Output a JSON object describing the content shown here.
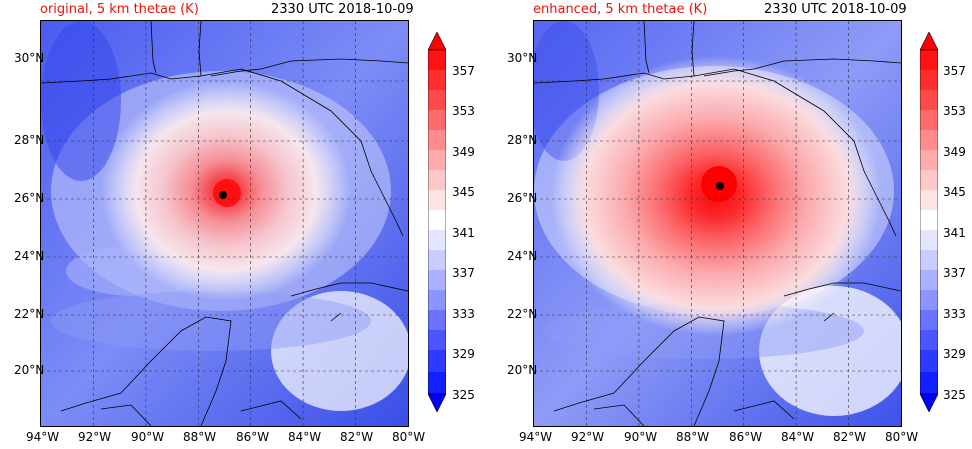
{
  "colors": {
    "warm_core": "#ff0000",
    "cold_edge": "#0000ff",
    "neutral": "#ffffff",
    "land_line": "#000000"
  },
  "panels": [
    {
      "title_left": "original, 5 km thetae (K)",
      "title_right": "2330 UTC 2018-10-09",
      "x_ticks": [
        "94°W",
        "92°W",
        "90°W",
        "88°W",
        "86°W",
        "84°W",
        "82°W",
        "80°W"
      ],
      "y_ticks": [
        "30°N",
        "28°N",
        "26°N",
        "24°N",
        "22°N",
        "20°N"
      ],
      "colorbar_ticks": [
        "357",
        "353",
        "349",
        "345",
        "341",
        "337",
        "333",
        "329",
        "325"
      ],
      "storm_intensity": 0.55
    },
    {
      "title_left": "enhanced, 5 km thetae (K)",
      "title_right": "2330 UTC 2018-10-09",
      "x_ticks": [
        "94°W",
        "92°W",
        "90°W",
        "88°W",
        "86°W",
        "84°W",
        "82°W",
        "80°W"
      ],
      "y_ticks": [
        "30°N",
        "28°N",
        "26°N",
        "24°N",
        "22°N",
        "20°N"
      ],
      "colorbar_ticks": [
        "357",
        "353",
        "349",
        "345",
        "341",
        "337",
        "333",
        "329",
        "325"
      ],
      "storm_intensity": 1.0
    }
  ]
}
